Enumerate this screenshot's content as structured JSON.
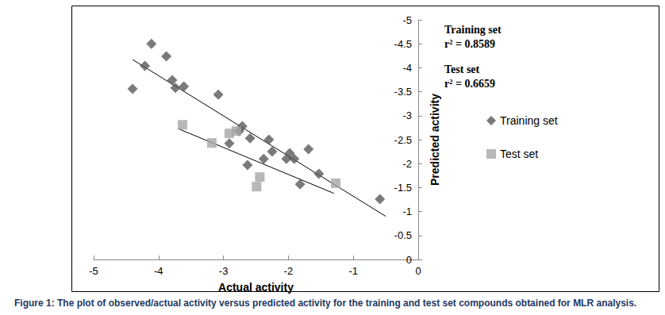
{
  "chart_data": {
    "type": "scatter",
    "caption": "Figure 1: The plot of observed/actual activity versus predicted activity for the training and test set compounds obtained for MLR analysis.",
    "x_label": "Actual activity",
    "y_label": "Predicted activity",
    "annotations": [
      "Training set",
      "r² = 0.8589",
      "Test set",
      "r² = 0.6659"
    ],
    "xlim": [
      -5,
      0
    ],
    "xticks": [
      -5,
      -4,
      -3,
      -2,
      -1,
      0
    ],
    "ylim": [
      -5,
      0
    ],
    "yticks": [
      -5,
      -4.5,
      -4,
      -3.5,
      -3,
      -2.5,
      -2,
      -1.5,
      -1,
      -0.5,
      0
    ],
    "grid": false,
    "legend": "right",
    "series": [
      {
        "name": "Training set",
        "color": "#595959",
        "marker": "diamond",
        "x": [
          -4.4,
          -4.21,
          -4.11,
          -3.88,
          -3.79,
          -3.74,
          -3.61,
          -3.08,
          -2.71,
          -2.76,
          -2.91,
          -2.59,
          -2.63,
          -2.3,
          -2.25,
          -2.38,
          -1.98,
          -2.03,
          -1.91,
          -1.69,
          -1.82,
          -1.53,
          -0.59
        ],
        "values": [
          -3.56,
          -4.04,
          -4.5,
          -4.24,
          -3.74,
          -3.58,
          -3.61,
          -3.44,
          -2.78,
          -2.68,
          -2.42,
          -2.53,
          -1.97,
          -2.5,
          -2.25,
          -2.1,
          -2.22,
          -2.1,
          -2.1,
          -2.3,
          -1.57,
          -1.79,
          -1.26
        ],
        "fit": {
          "x": [
            -4.4,
            -0.5
          ],
          "values": [
            -4.17,
            -0.9
          ]
        }
      },
      {
        "name": "Test set",
        "color": "#a6a6a6",
        "marker": "square",
        "x": [
          -3.63,
          -3.18,
          -2.91,
          -2.8,
          -2.44,
          -2.49,
          -1.27
        ],
        "values": [
          -2.81,
          -2.43,
          -2.63,
          -2.68,
          -1.72,
          -1.52,
          -1.59
        ],
        "fit": {
          "x": [
            -3.7,
            -1.3
          ],
          "values": [
            -2.73,
            -1.38
          ]
        }
      }
    ]
  }
}
